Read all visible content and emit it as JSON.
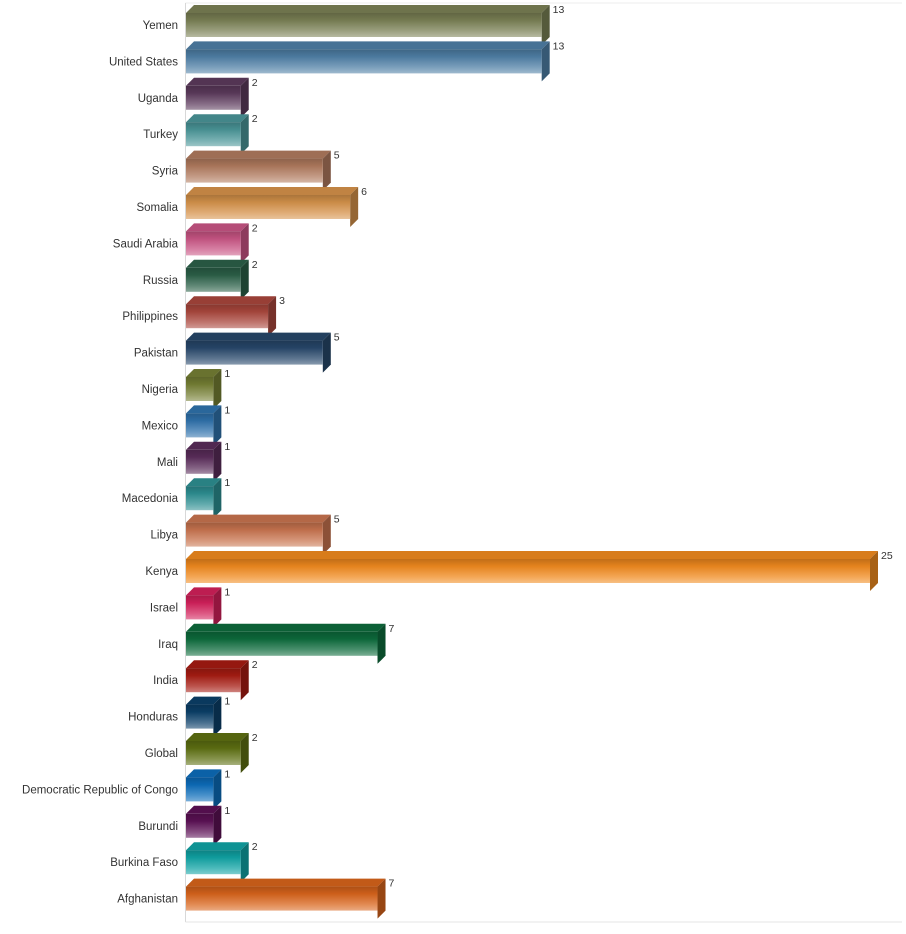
{
  "chart_data": {
    "type": "bar",
    "orientation": "horizontal",
    "style": "3d-bar",
    "categories": [
      "Yemen",
      "United States",
      "Uganda",
      "Turkey",
      "Syria",
      "Somalia",
      "Saudi Arabia",
      "Russia",
      "Philippines",
      "Pakistan",
      "Nigeria",
      "Mexico",
      "Mali",
      "Macedonia",
      "Libya",
      "Kenya",
      "Israel",
      "Iraq",
      "India",
      "Honduras",
      "Global",
      "Democratic Republic of Congo",
      "Burundi",
      "Burkina Faso",
      "Afghanistan"
    ],
    "values": [
      13,
      13,
      2,
      2,
      5,
      6,
      2,
      2,
      3,
      5,
      1,
      1,
      1,
      1,
      5,
      25,
      1,
      7,
      2,
      1,
      2,
      1,
      1,
      2,
      7
    ],
    "colors": [
      "#7a8054",
      "#4f7fa6",
      "#5c3a5c",
      "#4a9598",
      "#b07a5e",
      "#d5924a",
      "#c95585",
      "#2b6048",
      "#a9463c",
      "#27476a",
      "#757f34",
      "#2f72ac",
      "#5a2c5a",
      "#2d8f92",
      "#c8744f",
      "#f08a1e",
      "#d2205a",
      "#0d6b3c",
      "#a61b12",
      "#0b3f68",
      "#5e7012",
      "#0c6cba",
      "#5c1155",
      "#10a3a4",
      "#d8641b"
    ],
    "data_labels": [
      "13",
      "13",
      "2",
      "2",
      "5",
      "6",
      "2",
      "2",
      "3",
      "5",
      "1",
      "1",
      "1",
      "1",
      "5",
      "25",
      "1",
      "7",
      "2",
      "1",
      "2",
      "1",
      "1",
      "2",
      "7"
    ],
    "xlim": [
      0,
      25
    ],
    "grid": false,
    "legend": "none"
  }
}
